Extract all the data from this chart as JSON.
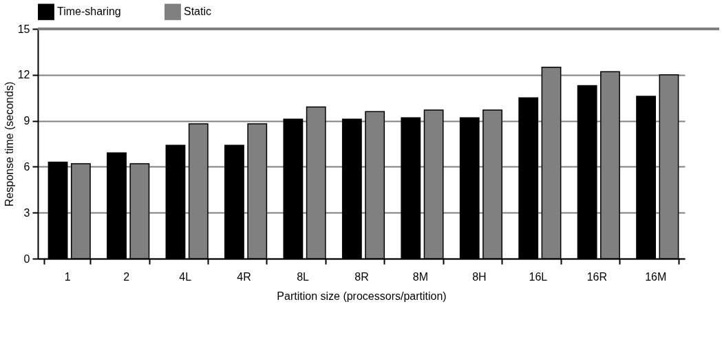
{
  "chart_data": {
    "type": "bar",
    "xlabel": "Partition size (processors/partition)",
    "ylabel": "Response time (seconds)",
    "categories": [
      "1",
      "2",
      "4L",
      "4R",
      "8L",
      "8R",
      "8M",
      "8H",
      "16L",
      "16R",
      "16M"
    ],
    "series": [
      {
        "name": "Time-sharing",
        "color": "#000000",
        "values": [
          6.3,
          6.9,
          7.4,
          7.4,
          9.1,
          9.1,
          9.2,
          9.2,
          10.5,
          11.3,
          10.6
        ]
      },
      {
        "name": "Static",
        "color": "#808080",
        "values": [
          6.2,
          6.2,
          8.8,
          8.8,
          9.9,
          9.6,
          9.7,
          9.7,
          12.5,
          12.2,
          12.0
        ]
      }
    ],
    "ylim": [
      0,
      15
    ],
    "yticks": [
      0,
      3,
      6,
      9,
      12,
      15
    ],
    "grid": "y",
    "legend": "top"
  }
}
